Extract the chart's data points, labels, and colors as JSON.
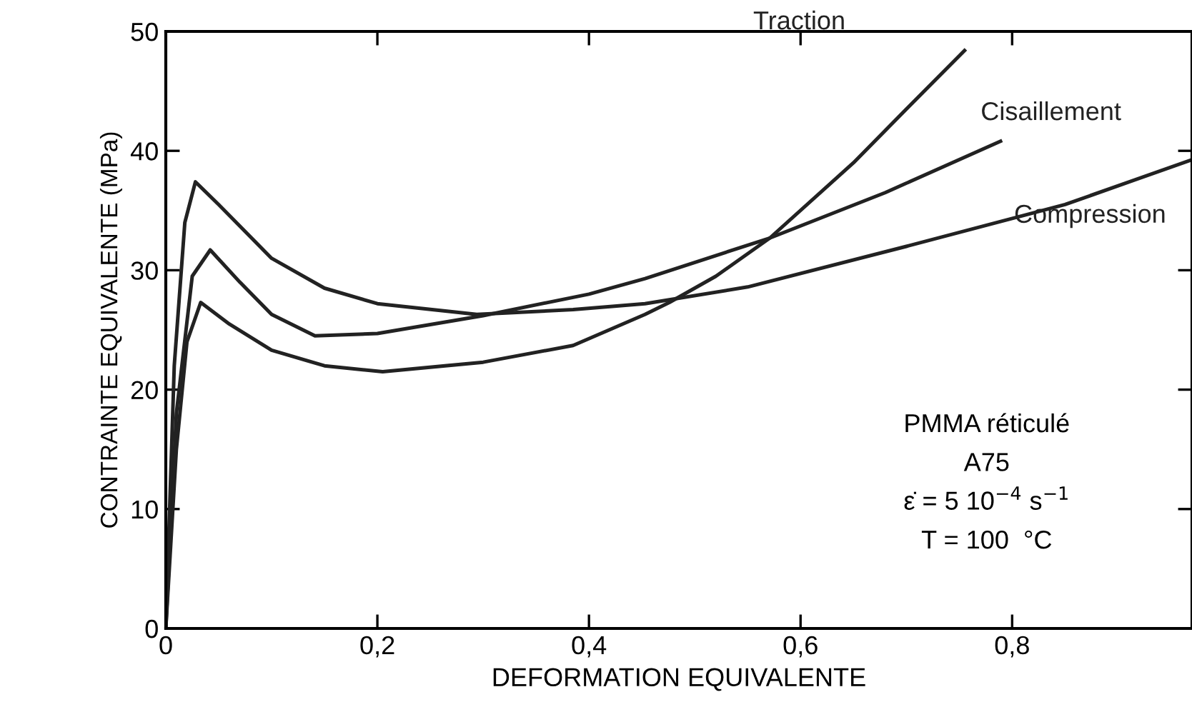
{
  "chart_data": {
    "type": "line",
    "xlabel": "DEFORMATION EQUIVALENTE",
    "ylabel": "CONTRAINTE EQUIVALENTE (MPa)",
    "xlim": [
      0,
      0.97
    ],
    "ylim": [
      0,
      50
    ],
    "xticks": [
      {
        "value": 0,
        "label": "0"
      },
      {
        "value": 0.2,
        "label": "0,2"
      },
      {
        "value": 0.4,
        "label": "0,4"
      },
      {
        "value": 0.6,
        "label": "0,6"
      },
      {
        "value": 0.8,
        "label": "0,8"
      }
    ],
    "yticks": [
      0,
      10,
      20,
      30,
      40,
      50
    ],
    "grid": false,
    "legend": false,
    "marker": "none",
    "line_style": "solid",
    "series": [
      {
        "name": "Traction",
        "color": "#222222",
        "x": [
          0,
          0.01,
          0.02,
          0.033,
          0.06,
          0.1,
          0.15,
          0.205,
          0.3,
          0.385,
          0.453,
          0.476,
          0.52,
          0.571,
          0.65,
          0.7,
          0.755
        ],
        "values": [
          0,
          15,
          24,
          27.3,
          25.5,
          23.3,
          22,
          21.5,
          22.3,
          23.7,
          26.3,
          27.3,
          29.5,
          32.7,
          39,
          43.5,
          48.4
        ]
      },
      {
        "name": "Cisaillement",
        "color": "#222222",
        "x": [
          0,
          0.01,
          0.025,
          0.042,
          0.07,
          0.1,
          0.141,
          0.2,
          0.3,
          0.4,
          0.453,
          0.571,
          0.68,
          0.789
        ],
        "values": [
          0,
          18,
          29.5,
          31.7,
          29,
          26.3,
          24.5,
          24.7,
          26.2,
          28,
          29.3,
          32.7,
          36.5,
          40.8
        ]
      },
      {
        "name": "Compression",
        "color": "#222222",
        "x": [
          0,
          0.008,
          0.018,
          0.028,
          0.05,
          0.1,
          0.15,
          0.2,
          0.294,
          0.385,
          0.453,
          0.55,
          0.7,
          0.85,
          0.968
        ],
        "values": [
          0,
          22,
          34,
          37.4,
          35.5,
          31,
          28.5,
          27.2,
          26.3,
          26.7,
          27.2,
          28.6,
          32,
          35.5,
          39.2
        ]
      }
    ],
    "annotations": [
      "PMMA réticulé",
      "A75",
      "ε̇ = 5 10$^{−4}$ s$^{−1}$",
      "T = 100  °C"
    ]
  }
}
